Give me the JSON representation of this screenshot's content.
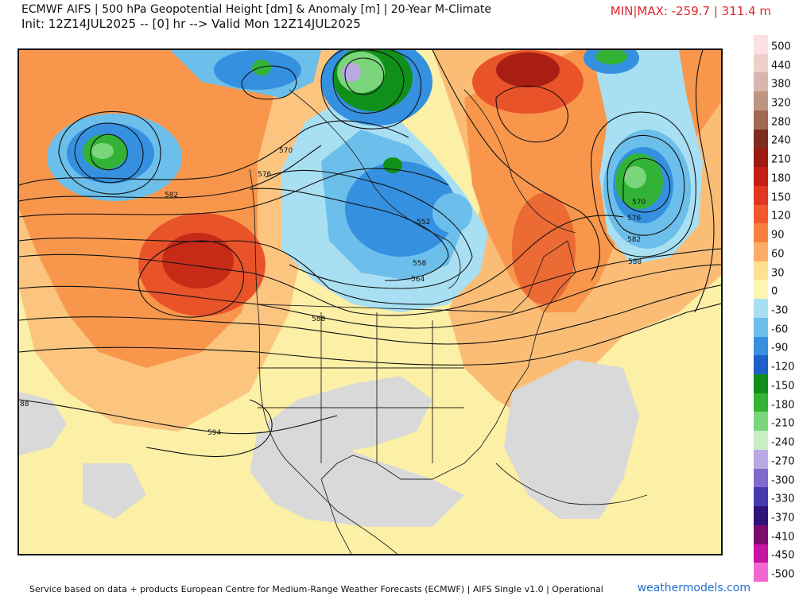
{
  "header": {
    "title": "ECMWF AIFS | 500 hPa Geopotential Height [dm] & Anomaly [m] | 20-Year M-Climate",
    "init": "Init: 12Z14JUL2025 -- [0] hr --> Valid Mon 12Z14JUL2025",
    "minmax": "MIN|MAX: -259.7 | 311.4 m"
  },
  "legend": {
    "items": [
      {
        "label": "500",
        "color": "#fbe1e4"
      },
      {
        "label": "440",
        "color": "#eecfc9"
      },
      {
        "label": "380",
        "color": "#d8b6ad"
      },
      {
        "label": "320",
        "color": "#be9483"
      },
      {
        "label": "280",
        "color": "#a26a52"
      },
      {
        "label": "240",
        "color": "#7d2c20"
      },
      {
        "label": "210",
        "color": "#9b1a12"
      },
      {
        "label": "180",
        "color": "#c21e14"
      },
      {
        "label": "150",
        "color": "#e13722"
      },
      {
        "label": "120",
        "color": "#f2582b"
      },
      {
        "label": "90",
        "color": "#f7803e"
      },
      {
        "label": "60",
        "color": "#fbad68"
      },
      {
        "label": "30",
        "color": "#fde092"
      },
      {
        "label": "0",
        "color": "#fcf6b0"
      },
      {
        "label": "-30",
        "color": "#a9dff2"
      },
      {
        "label": "-60",
        "color": "#6bbfea"
      },
      {
        "label": "-90",
        "color": "#3590e0"
      },
      {
        "label": "-120",
        "color": "#1f5fc9"
      },
      {
        "label": "-150",
        "color": "#10901a"
      },
      {
        "label": "-180",
        "color": "#32b336"
      },
      {
        "label": "-210",
        "color": "#7bd57b"
      },
      {
        "label": "-240",
        "color": "#c7efc2"
      },
      {
        "label": "-270",
        "color": "#b9a8e2"
      },
      {
        "label": "-300",
        "color": "#7f6acd"
      },
      {
        "label": "-330",
        "color": "#4638b0"
      },
      {
        "label": "-370",
        "color": "#311279"
      },
      {
        "label": "-410",
        "color": "#7a0c6e"
      },
      {
        "label": "-450",
        "color": "#c615a4"
      },
      {
        "label": "-500",
        "color": "#f268d2"
      }
    ]
  },
  "map": {
    "contour_labels": [
      "570",
      "576",
      "582",
      "552",
      "558",
      "564",
      "588",
      "594",
      "570",
      "576",
      "582",
      "588",
      "88"
    ]
  },
  "footer": {
    "credit": "Service based on data + products European Centre for Medium-Range Weather Forecasts (ECMWF) | AIFS Single v1.0 | Operational",
    "brand": "weathermodels.com"
  }
}
